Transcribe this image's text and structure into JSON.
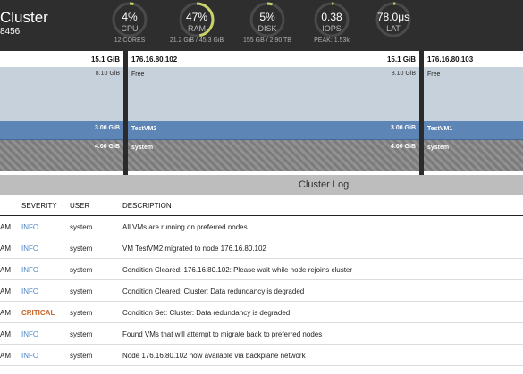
{
  "header": {
    "title": "Cluster",
    "cluster_id": "8456",
    "gauges": [
      {
        "name": "cpu",
        "value": "4%",
        "label": "CPU",
        "sub": "12 CORES",
        "level": 0.04
      },
      {
        "name": "ram",
        "value": "47%",
        "label": "RAM",
        "sub": "21.2 GiB / 45.3 GiB",
        "level": 0.47
      },
      {
        "name": "disk",
        "value": "5%",
        "label": "DISK",
        "sub": "155 GB / 2.90 TB",
        "level": 0.05
      },
      {
        "name": "iops",
        "value": "0.38",
        "label": "IOPS",
        "sub": "PEAK: 1.53k",
        "level": 0.0
      },
      {
        "name": "lat",
        "value": "78.0μs",
        "label": "LAT",
        "sub": "",
        "level": 0.0
      }
    ]
  },
  "colors": {
    "header_bg": "#2e2e2e",
    "gauge_track": "#4a4a4a",
    "gauge_fill": "#c9d36a",
    "free": "#c7d1dc",
    "vm": "#5d85b6",
    "info": "#4c86c6",
    "critical": "#c9662a"
  },
  "nodes": [
    {
      "ip": "",
      "capacity": "15.1 GiB",
      "free_label": "",
      "free_size": "8.10 GiB",
      "vm_label": "",
      "vm_size": "3.00 GiB",
      "sys_label": "",
      "sys_size": "4.00 GiB"
    },
    {
      "ip": "176.16.80.102",
      "capacity": "15.1 GiB",
      "free_label": "Free",
      "free_size": "8.10 GiB",
      "vm_label": "TestVM2",
      "vm_size": "3.00 GiB",
      "sys_label": "system",
      "sys_size": "4.00 GiB"
    },
    {
      "ip": "176.16.80.103",
      "capacity": "",
      "free_label": "Free",
      "free_size": "",
      "vm_label": "TestVM1",
      "vm_size": "",
      "sys_label": "system",
      "sys_size": ""
    }
  ],
  "log": {
    "title": "Cluster Log",
    "columns": {
      "severity": "SEVERITY",
      "user": "USER",
      "description": "DESCRIPTION"
    },
    "rows": [
      {
        "time": "AM",
        "severity": "INFO",
        "user": "system",
        "description": "All VMs are running on preferred nodes"
      },
      {
        "time": "AM",
        "severity": "INFO",
        "user": "system",
        "description": "VM TestVM2 migrated to node 176.16.80.102"
      },
      {
        "time": "AM",
        "severity": "INFO",
        "user": "system",
        "description": "Condition Cleared: 176.16.80.102: Please wait while node rejoins cluster"
      },
      {
        "time": "AM",
        "severity": "INFO",
        "user": "system",
        "description": "Condition Cleared: Cluster: Data redundancy is degraded"
      },
      {
        "time": "AM",
        "severity": "CRITICAL",
        "user": "system",
        "description": "Condition Set: Cluster: Data redundancy is degraded"
      },
      {
        "time": "AM",
        "severity": "INFO",
        "user": "system",
        "description": "Found VMs that will attempt to migrate back to preferred nodes"
      },
      {
        "time": "AM",
        "severity": "INFO",
        "user": "system",
        "description": "Node 176.16.80.102 now available via backplane network"
      }
    ]
  }
}
